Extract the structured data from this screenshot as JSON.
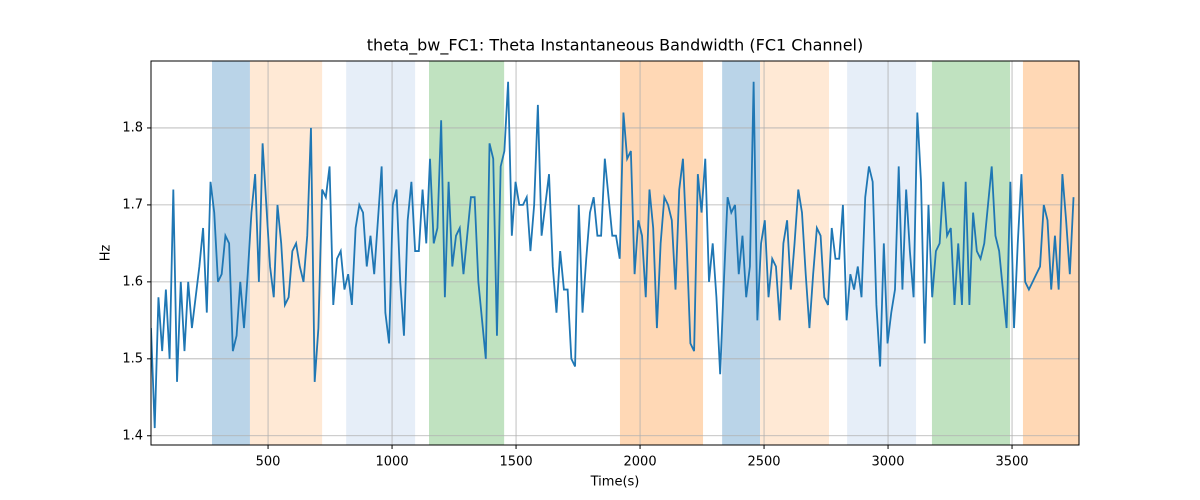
{
  "chart_data": {
    "type": "line",
    "title": "theta_bw_FC1: Theta Instantaneous Bandwidth (FC1 Channel)",
    "xlabel": "Time(s)",
    "ylabel": "Hz",
    "xlim": [
      28,
      3770
    ],
    "ylim": [
      1.388,
      1.887
    ],
    "xticks": [
      500,
      1000,
      1500,
      2000,
      2500,
      3000,
      3500
    ],
    "yticks": [
      1.4,
      1.5,
      1.6,
      1.7,
      1.8
    ],
    "grid": true,
    "spans": [
      {
        "x0": 274,
        "x1": 427,
        "color": "#bad4e8"
      },
      {
        "x0": 427,
        "x1": 718,
        "color": "#ffe9d5"
      },
      {
        "x0": 815,
        "x1": 1093,
        "color": "#e6eef8"
      },
      {
        "x0": 1149,
        "x1": 1452,
        "color": "#c0e2c0"
      },
      {
        "x0": 1919,
        "x1": 2254,
        "color": "#ffd8b5"
      },
      {
        "x0": 2331,
        "x1": 2484,
        "color": "#bad4e8"
      },
      {
        "x0": 2484,
        "x1": 2762,
        "color": "#ffe9d5"
      },
      {
        "x0": 2835,
        "x1": 3113,
        "color": "#e6eef8"
      },
      {
        "x0": 3177,
        "x1": 3492,
        "color": "#c0e2c0"
      },
      {
        "x0": 3544,
        "x1": 3770,
        "color": "#ffd8b5"
      }
    ],
    "series": [
      {
        "color": "#1f77b4",
        "x": [
          28,
          43,
          58,
          73,
          88,
          103,
          118,
          133,
          148,
          163,
          178,
          193,
          208,
          223,
          238,
          253,
          268,
          283,
          298,
          313,
          328,
          343,
          358,
          373,
          388,
          403,
          418,
          433,
          448,
          463,
          478,
          493,
          508,
          523,
          538,
          553,
          568,
          583,
          598,
          613,
          628,
          643,
          658,
          673,
          688,
          703,
          718,
          733,
          748,
          763,
          778,
          793,
          808,
          823,
          838,
          853,
          868,
          883,
          898,
          913,
          928,
          943,
          958,
          973,
          988,
          1003,
          1018,
          1033,
          1048,
          1063,
          1078,
          1093,
          1108,
          1123,
          1138,
          1153,
          1168,
          1183,
          1198,
          1213,
          1228,
          1243,
          1258,
          1273,
          1288,
          1303,
          1318,
          1333,
          1348,
          1363,
          1378,
          1393,
          1408,
          1423,
          1438,
          1453,
          1468,
          1483,
          1498,
          1513,
          1528,
          1543,
          1558,
          1573,
          1588,
          1603,
          1618,
          1633,
          1648,
          1663,
          1678,
          1693,
          1708,
          1723,
          1738,
          1753,
          1768,
          1783,
          1798,
          1813,
          1828,
          1843,
          1858,
          1873,
          1888,
          1903,
          1918,
          1933,
          1948,
          1963,
          1978,
          1993,
          2008,
          2023,
          2038,
          2053,
          2068,
          2083,
          2098,
          2113,
          2128,
          2143,
          2158,
          2173,
          2188,
          2203,
          2218,
          2233,
          2248,
          2263,
          2278,
          2293,
          2308,
          2323,
          2338,
          2353,
          2368,
          2383,
          2398,
          2413,
          2428,
          2443,
          2458,
          2473,
          2488,
          2503,
          2518,
          2533,
          2548,
          2563,
          2578,
          2593,
          2608,
          2623,
          2638,
          2653,
          2668,
          2683,
          2698,
          2713,
          2728,
          2743,
          2758,
          2773,
          2788,
          2803,
          2818,
          2833,
          2848,
          2863,
          2878,
          2893,
          2908,
          2923,
          2938,
          2953,
          2968,
          2983,
          2998,
          3013,
          3028,
          3043,
          3058,
          3073,
          3088,
          3103,
          3118,
          3133,
          3148,
          3163,
          3178,
          3193,
          3208,
          3223,
          3238,
          3253,
          3268,
          3283,
          3298,
          3313,
          3328,
          3343,
          3358,
          3373,
          3388,
          3403,
          3418,
          3433,
          3448,
          3463,
          3478,
          3493,
          3508,
          3523,
          3538,
          3553,
          3568,
          3583,
          3598,
          3613,
          3628,
          3643,
          3658,
          3673,
          3688,
          3703,
          3718,
          3733,
          3748
        ],
        "values": [
          1.54,
          1.41,
          1.58,
          1.51,
          1.59,
          1.5,
          1.72,
          1.47,
          1.6,
          1.51,
          1.6,
          1.54,
          1.58,
          1.62,
          1.67,
          1.56,
          1.73,
          1.69,
          1.6,
          1.61,
          1.66,
          1.65,
          1.51,
          1.53,
          1.6,
          1.54,
          1.61,
          1.69,
          1.74,
          1.6,
          1.78,
          1.7,
          1.62,
          1.58,
          1.7,
          1.65,
          1.57,
          1.58,
          1.64,
          1.65,
          1.62,
          1.6,
          1.66,
          1.8,
          1.47,
          1.54,
          1.72,
          1.71,
          1.75,
          1.57,
          1.63,
          1.64,
          1.59,
          1.61,
          1.57,
          1.67,
          1.7,
          1.69,
          1.62,
          1.66,
          1.61,
          1.68,
          1.75,
          1.56,
          1.52,
          1.7,
          1.72,
          1.6,
          1.53,
          1.68,
          1.73,
          1.64,
          1.64,
          1.72,
          1.65,
          1.76,
          1.65,
          1.67,
          1.81,
          1.58,
          1.73,
          1.62,
          1.66,
          1.67,
          1.61,
          1.66,
          1.71,
          1.71,
          1.6,
          1.55,
          1.5,
          1.78,
          1.76,
          1.53,
          1.75,
          1.77,
          1.86,
          1.66,
          1.73,
          1.7,
          1.7,
          1.71,
          1.64,
          1.7,
          1.83,
          1.66,
          1.7,
          1.74,
          1.62,
          1.56,
          1.64,
          1.59,
          1.59,
          1.5,
          1.49,
          1.7,
          1.56,
          1.63,
          1.69,
          1.71,
          1.66,
          1.66,
          1.76,
          1.71,
          1.66,
          1.66,
          1.63,
          1.82,
          1.76,
          1.77,
          1.61,
          1.68,
          1.66,
          1.58,
          1.72,
          1.67,
          1.54,
          1.65,
          1.71,
          1.7,
          1.68,
          1.59,
          1.72,
          1.76,
          1.65,
          1.52,
          1.51,
          1.74,
          1.69,
          1.76,
          1.6,
          1.65,
          1.58,
          1.48,
          1.6,
          1.71,
          1.69,
          1.7,
          1.61,
          1.66,
          1.58,
          1.62,
          1.86,
          1.55,
          1.65,
          1.68,
          1.58,
          1.63,
          1.62,
          1.55,
          1.65,
          1.68,
          1.59,
          1.65,
          1.72,
          1.69,
          1.61,
          1.54,
          1.61,
          1.67,
          1.66,
          1.58,
          1.57,
          1.67,
          1.63,
          1.63,
          1.7,
          1.55,
          1.61,
          1.59,
          1.62,
          1.58,
          1.71,
          1.75,
          1.73,
          1.57,
          1.49,
          1.65,
          1.52,
          1.56,
          1.59,
          1.75,
          1.59,
          1.72,
          1.64,
          1.58,
          1.82,
          1.73,
          1.52,
          1.7,
          1.58,
          1.64,
          1.65,
          1.73,
          1.66,
          1.67,
          1.57,
          1.65,
          1.57,
          1.73,
          1.57,
          1.69,
          1.64,
          1.63,
          1.65,
          1.7,
          1.75,
          1.66,
          1.64,
          1.59,
          1.54,
          1.73,
          1.54,
          1.65,
          1.74,
          1.6,
          1.59,
          1.6,
          1.61,
          1.62,
          1.7,
          1.68,
          1.59,
          1.66,
          1.59,
          1.74,
          1.68,
          1.61,
          1.71
        ]
      }
    ]
  }
}
